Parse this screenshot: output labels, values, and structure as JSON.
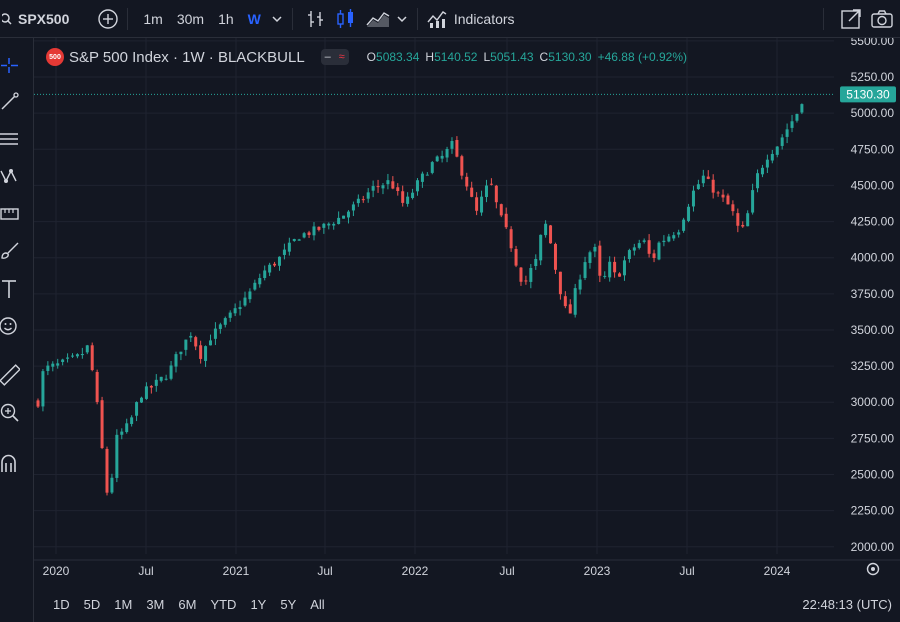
{
  "toolbar": {
    "symbol": "SPX500",
    "intervals": [
      "1m",
      "30m",
      "1h",
      "W"
    ],
    "active_interval": "W",
    "indicators_label": "Indicators"
  },
  "legend": {
    "badge": "500",
    "title": "S&P 500 Index · 1W · BLACKBULL",
    "open_label": "O",
    "open": "5083.34",
    "high_label": "H",
    "high": "5140.52",
    "low_label": "L",
    "low": "5051.43",
    "close_label": "C",
    "close": "5130.30",
    "change": "+46.88 (+0.92%)"
  },
  "bottombar": {
    "ranges": [
      "1D",
      "5D",
      "1M",
      "3M",
      "6M",
      "YTD",
      "1Y",
      "5Y",
      "All"
    ],
    "clock": "22:48:13 (UTC)"
  },
  "colors": {
    "up": "#26a69a",
    "down": "#ef5350",
    "grid": "#1f2330",
    "bg": "#131722"
  },
  "chart_data": {
    "type": "candlestick",
    "title": "S&P 500 Index · 1W · BLACKBULL",
    "x_ticks": [
      "2020",
      "Jul",
      "2021",
      "Jul",
      "2022",
      "Jul",
      "2023",
      "Jul",
      "2024"
    ],
    "y_ticks": [
      "5500.00",
      "5250.00",
      "5000.00",
      "4750.00",
      "4500.00",
      "4250.00",
      "4000.00",
      "3750.00",
      "3500.00",
      "3250.00",
      "3000.00",
      "2750.00",
      "2500.00",
      "2250.00",
      "2000.00"
    ],
    "ylim": [
      1950,
      5520
    ],
    "last_price": "5130.30",
    "anchors": [
      {
        "d": 0,
        "p": 3000
      },
      {
        "d": 8,
        "p": 3230
      },
      {
        "d": 30,
        "p": 3260
      },
      {
        "d": 60,
        "p": 3320
      },
      {
        "d": 70,
        "p": 3380
      },
      {
        "d": 80,
        "p": 3150
      },
      {
        "d": 95,
        "p": 2500
      },
      {
        "d": 100,
        "p": 2300
      },
      {
        "d": 112,
        "p": 2750
      },
      {
        "d": 130,
        "p": 2850
      },
      {
        "d": 145,
        "p": 3050
      },
      {
        "d": 160,
        "p": 3100
      },
      {
        "d": 185,
        "p": 3200
      },
      {
        "d": 200,
        "p": 3350
      },
      {
        "d": 220,
        "p": 3500
      },
      {
        "d": 228,
        "p": 3300
      },
      {
        "d": 245,
        "p": 3450
      },
      {
        "d": 270,
        "p": 3580
      },
      {
        "d": 300,
        "p": 3750
      },
      {
        "d": 320,
        "p": 3900
      },
      {
        "d": 340,
        "p": 3980
      },
      {
        "d": 370,
        "p": 4150
      },
      {
        "d": 400,
        "p": 4200
      },
      {
        "d": 430,
        "p": 4280
      },
      {
        "d": 460,
        "p": 4400
      },
      {
        "d": 475,
        "p": 4480
      },
      {
        "d": 500,
        "p": 4530
      },
      {
        "d": 520,
        "p": 4360
      },
      {
        "d": 540,
        "p": 4520
      },
      {
        "d": 560,
        "p": 4650
      },
      {
        "d": 575,
        "p": 4700
      },
      {
        "d": 588,
        "p": 4780
      },
      {
        "d": 600,
        "p": 4620
      },
      {
        "d": 612,
        "p": 4470
      },
      {
        "d": 622,
        "p": 4300
      },
      {
        "d": 632,
        "p": 4430
      },
      {
        "d": 642,
        "p": 4530
      },
      {
        "d": 655,
        "p": 4300
      },
      {
        "d": 668,
        "p": 4150
      },
      {
        "d": 680,
        "p": 3950
      },
      {
        "d": 690,
        "p": 3800
      },
      {
        "d": 698,
        "p": 3900
      },
      {
        "d": 710,
        "p": 4000
      },
      {
        "d": 718,
        "p": 4280
      },
      {
        "d": 728,
        "p": 4100
      },
      {
        "d": 738,
        "p": 3850
      },
      {
        "d": 748,
        "p": 3650
      },
      {
        "d": 755,
        "p": 3600
      },
      {
        "d": 765,
        "p": 3800
      },
      {
        "d": 778,
        "p": 4000
      },
      {
        "d": 790,
        "p": 4080
      },
      {
        "d": 800,
        "p": 3800
      },
      {
        "d": 812,
        "p": 3950
      },
      {
        "d": 822,
        "p": 3850
      },
      {
        "d": 835,
        "p": 4000
      },
      {
        "d": 848,
        "p": 4080
      },
      {
        "d": 860,
        "p": 4120
      },
      {
        "d": 872,
        "p": 3970
      },
      {
        "d": 882,
        "p": 4100
      },
      {
        "d": 895,
        "p": 4150
      },
      {
        "d": 910,
        "p": 4200
      },
      {
        "d": 930,
        "p": 4450
      },
      {
        "d": 945,
        "p": 4560
      },
      {
        "d": 958,
        "p": 4480
      },
      {
        "d": 968,
        "p": 4420
      },
      {
        "d": 978,
        "p": 4380
      },
      {
        "d": 988,
        "p": 4300
      },
      {
        "d": 998,
        "p": 4150
      },
      {
        "d": 1008,
        "p": 4300
      },
      {
        "d": 1020,
        "p": 4550
      },
      {
        "d": 1035,
        "p": 4700
      },
      {
        "d": 1050,
        "p": 4780
      },
      {
        "d": 1065,
        "p": 4900
      },
      {
        "d": 1078,
        "p": 5000
      },
      {
        "d": 1088,
        "p": 5130
      }
    ]
  }
}
